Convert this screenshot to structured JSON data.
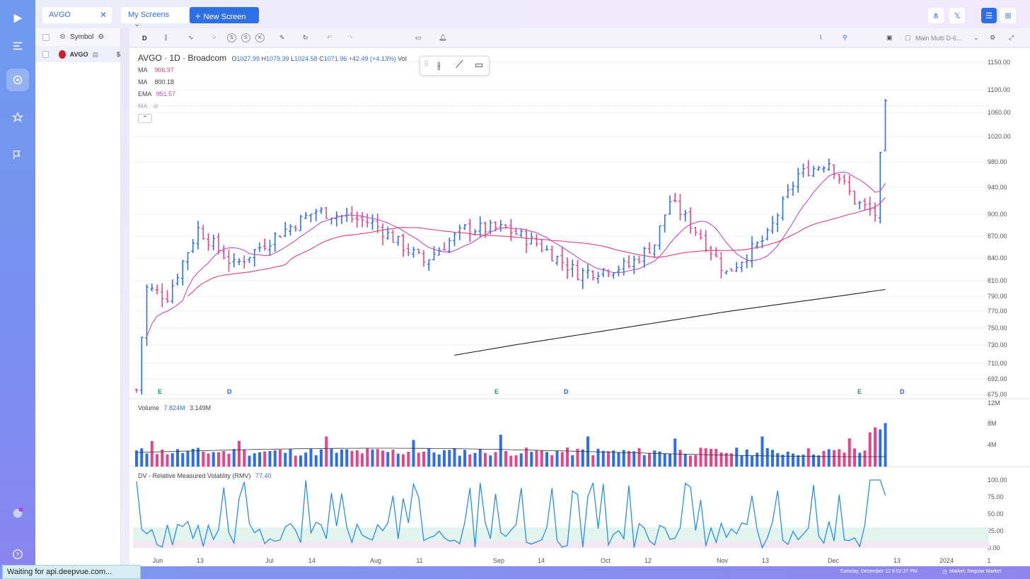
{
  "tabs": {
    "active": "AVGO",
    "my_screens": "My Screens",
    "new_screen": "New Screen"
  },
  "list": {
    "header_label": "Symbol",
    "rows": [
      {
        "symbol": "AVGO",
        "extra": "$"
      }
    ]
  },
  "toolbar": {
    "interval": "D",
    "s1": "S",
    "s2": "S",
    "k": "K",
    "layout_name": "Main Multi D-6..."
  },
  "legend": {
    "title": "AVGO · 1D · Broadcom",
    "o_label": "O",
    "o": "1027.99",
    "h_label": "H",
    "h": "1079.39",
    "l_label": "L",
    "l": "1024.58",
    "c_label": "C",
    "c": "1071.96",
    "chg": "+42.49 (+4.13%)",
    "vol_label": "Vol",
    "ma1_label": "MA",
    "ma1": "906.97",
    "ma2_label": "MA",
    "ma2": "800.18",
    "ema_label": "EMA",
    "ema": "951.57",
    "ma3_label": "MA"
  },
  "volume_legend": {
    "label": "Volume",
    "v1": "7.824M",
    "v2": "3.149M"
  },
  "rmv_legend": {
    "label": "DV - Relative Measured Volatility (RMV)",
    "value": "77.40"
  },
  "status": {
    "text": "Waiting for api.deepvue.com..."
  },
  "bottom": {
    "datetime": "Tuesday, December 12 8:52:37 PM",
    "market": "Market: Regular Market"
  },
  "colors": {
    "up": "#2f6fe4",
    "down": "#e2478b",
    "ma_black": "#222222",
    "ema": "#c24bc8",
    "ma_red": "#e23d78",
    "rmv": "#2a8fe0"
  },
  "chart_data": [
    {
      "type": "candlestick",
      "title": "AVGO · 1D · Broadcom",
      "ylim": [
        675,
        1150
      ],
      "y_ticks": [
        "1150.00",
        "1100.00",
        "1060.00",
        "1020.00",
        "980.00",
        "940.00",
        "900.00",
        "870.00",
        "840.00",
        "810.00",
        "790.00",
        "770.00",
        "750.00",
        "730.00",
        "710.00",
        "692.00",
        "675.00"
      ],
      "x_ticks": [
        "Jun",
        "13",
        "Jul",
        "14",
        "Aug",
        "11",
        "Sep",
        "14",
        "Oct",
        "12",
        "Nov",
        "13",
        "Dec",
        "13",
        "2024",
        "1"
      ],
      "event_markers": [
        "E",
        "D",
        "E",
        "D",
        "E",
        "D"
      ],
      "series": [
        {
          "name": "MA",
          "last": 906.97
        },
        {
          "name": "MA",
          "last": 800.18
        },
        {
          "name": "EMA",
          "last": 951.57
        }
      ],
      "last_bar": {
        "o": 1027.99,
        "h": 1079.39,
        "l": 1024.58,
        "c": 1071.96
      }
    },
    {
      "type": "bar",
      "title": "Volume",
      "y_ticks": [
        "12M",
        "8M",
        "4M"
      ]
    },
    {
      "type": "line",
      "title": "DV - Relative Measured Volatility (RMV)",
      "y_ticks": [
        "100.00",
        "75.00",
        "50.00",
        "25.00",
        "0.00"
      ],
      "last": 77.4
    }
  ]
}
